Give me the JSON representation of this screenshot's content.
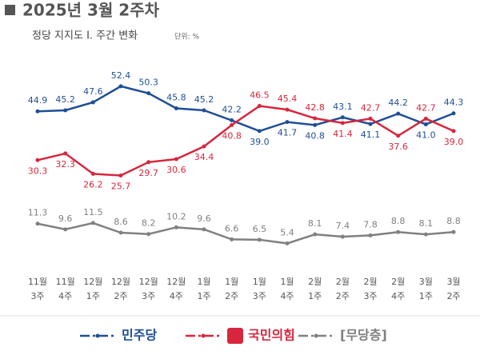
{
  "chart_data": {
    "type": "line",
    "title": "2025년 3월 2주차",
    "subtitle": "정당 지지도 Ⅰ. 주간 변화",
    "unit_note": "단위: %",
    "categories": [
      [
        "11월",
        "3주"
      ],
      [
        "11월",
        "4주"
      ],
      [
        "12월",
        "1주"
      ],
      [
        "12월",
        "2주"
      ],
      [
        "12월",
        "3주"
      ],
      [
        "12월",
        "4주"
      ],
      [
        "1월",
        "1주"
      ],
      [
        "1월",
        "2주"
      ],
      [
        "1월",
        "3주"
      ],
      [
        "1월",
        "4주"
      ],
      [
        "2월",
        "1주"
      ],
      [
        "2월",
        "2주"
      ],
      [
        "2월",
        "3주"
      ],
      [
        "2월",
        "4주"
      ],
      [
        "3월",
        "1주"
      ],
      [
        "3월",
        "2주"
      ]
    ],
    "ylim": [
      0,
      55
    ],
    "series": [
      {
        "name": "민주당",
        "color": "#1f4e96",
        "values": [
          44.9,
          45.2,
          47.6,
          52.4,
          50.3,
          45.8,
          45.2,
          42.2,
          39.0,
          41.7,
          40.8,
          43.1,
          41.1,
          44.2,
          41.0,
          44.3
        ],
        "value_labels": [
          "44.9",
          "45.2",
          "47.6",
          "52.4",
          "50.3",
          "45.8",
          "45.2",
          "42.2",
          "39.0",
          "41.7",
          "40.8",
          "43.1",
          "41.1",
          "44.2",
          "41.0",
          "44.3"
        ]
      },
      {
        "name": "국민의힘",
        "color": "#d7263d",
        "values": [
          30.3,
          32.3,
          26.2,
          25.7,
          29.7,
          30.6,
          34.4,
          40.8,
          46.5,
          45.4,
          42.8,
          41.4,
          42.7,
          37.6,
          42.7,
          39.0
        ],
        "value_labels": [
          "30.3",
          "32.3",
          "26.2",
          "25.7",
          "29.7",
          "30.6",
          "34.4",
          "40.8",
          "46.5",
          "45.4",
          "42.8",
          "41.4",
          "42.7",
          "37.6",
          "42.7",
          "39.0"
        ]
      },
      {
        "name": "[무당층]",
        "color": "#808080",
        "values": [
          11.3,
          9.6,
          11.5,
          8.6,
          8.2,
          10.2,
          9.6,
          6.6,
          6.5,
          5.4,
          8.1,
          7.4,
          7.8,
          8.8,
          8.1,
          8.8
        ],
        "value_labels": [
          "11.3",
          "9.6",
          "11.5",
          "8.6",
          "8.2",
          "10.2",
          "9.6",
          "6.6",
          "6.5",
          "5.4",
          "8.1",
          "7.4",
          "7.8",
          "8.8",
          "8.1",
          "8.8"
        ]
      }
    ]
  }
}
